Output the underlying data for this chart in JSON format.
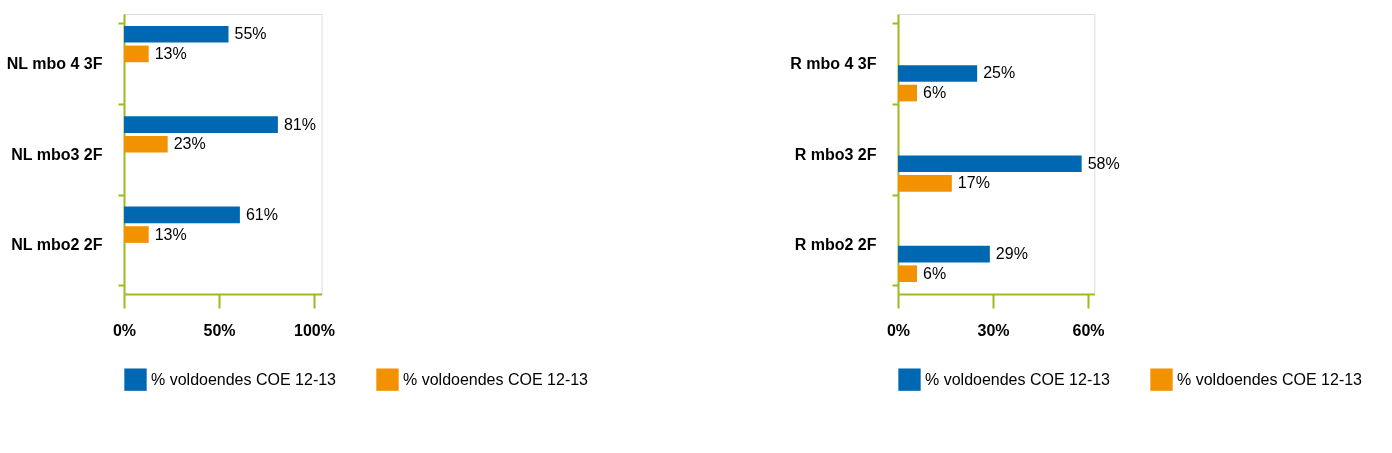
{
  "chart_data": [
    {
      "type": "bar",
      "orientation": "horizontal",
      "categories": [
        "NL mbo 4 3F",
        "NL mbo3 2F",
        "NL mbo2 2F"
      ],
      "series": [
        {
          "name": "% voldoendes COE 12-13",
          "color": "#0068b3",
          "values": [
            55,
            81,
            61
          ],
          "value_labels": [
            "55%",
            "81%",
            "61%"
          ]
        },
        {
          "name": "% voldoendes COE 12-13",
          "color": "#f39200",
          "values": [
            13,
            23,
            13
          ],
          "value_labels": [
            "13%",
            "23%",
            "13%"
          ]
        }
      ],
      "xlim": [
        0,
        104
      ],
      "xticks": [
        {
          "value": 0,
          "label": "0%"
        },
        {
          "value": 50,
          "label": "50%"
        },
        {
          "value": 100,
          "label": "100%"
        }
      ],
      "grid": false,
      "legend": "bottom"
    },
    {
      "type": "bar",
      "orientation": "horizontal",
      "categories": [
        "R mbo 4 3F",
        "R mbo3 2F",
        "R mbo2 2F"
      ],
      "series": [
        {
          "name": "% voldoendes COE 12-13",
          "color": "#0068b3",
          "values": [
            25,
            58,
            29
          ],
          "value_labels": [
            "25%",
            "58%",
            "29%"
          ]
        },
        {
          "name": "% voldoendes COE 12-13",
          "color": "#f39200",
          "values": [
            6,
            17,
            6
          ],
          "value_labels": [
            "6%",
            "17%",
            "6%"
          ]
        }
      ],
      "xlim": [
        0,
        62
      ],
      "xticks": [
        {
          "value": 0,
          "label": "0%"
        },
        {
          "value": 30,
          "label": "30%"
        },
        {
          "value": 60,
          "label": "60%"
        }
      ],
      "grid": false,
      "legend": "bottom"
    }
  ]
}
